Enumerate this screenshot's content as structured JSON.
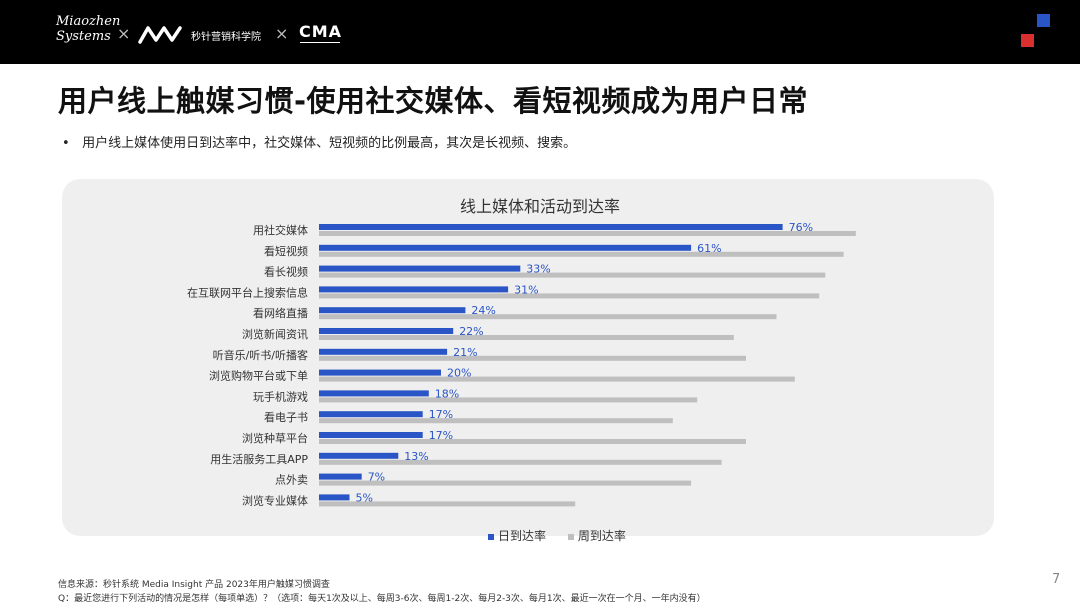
{
  "header": {
    "brand1": "Miaozhen Systems",
    "brand1_line1": "Miaozhen",
    "brand1_line2": "Systems",
    "separator": "×",
    "brand2_cn": "秒针营销科学院",
    "brand3": "CMA",
    "accent_blue": "#2a55c7",
    "accent_red": "#d92f2f"
  },
  "slide": {
    "title": "用户线上触媒习惯-使用社交媒体、看短视频成为用户日常",
    "bullet_marker": "•",
    "bullet": "用户线上媒体使用日到达率中，社交媒体、短视频的比例最高，其次是长视频、搜索。",
    "source": "信息来源：秒针系统 Media Insight 产品  2023年用户触媒习惯调查",
    "note": "Q：最近您进行下列活动的情况是怎样（每项单选）？（选项：每天1次及以上、每周3-6次、每周1-2次、每月2-3次、每月1次、最近一次在一个月、一年内没有）",
    "page_number": "7"
  },
  "chart_data": {
    "type": "bar",
    "orientation": "horizontal",
    "title": "线上媒体和活动到达率",
    "categories": [
      "用社交媒体",
      "看短视频",
      "看长视频",
      "在互联网平台上搜索信息",
      "看网络直播",
      "浏览新闻资讯",
      "听音乐/听书/听播客",
      "浏览购物平台或下单",
      "玩手机游戏",
      "看电子书",
      "浏览种草平台",
      "用生活服务工具APP",
      "点外卖",
      "浏览专业媒体"
    ],
    "series": [
      {
        "name": "日到达率",
        "color": "#2a55c7",
        "values": [
          76,
          61,
          33,
          31,
          24,
          22,
          21,
          20,
          18,
          17,
          17,
          13,
          7,
          5
        ],
        "labels": [
          "76%",
          "61%",
          "33%",
          "31%",
          "24%",
          "22%",
          "21%",
          "20%",
          "18%",
          "17%",
          "17%",
          "13%",
          "7%",
          "5%"
        ]
      },
      {
        "name": "周到达率",
        "color": "#bfbfbf",
        "values": [
          88,
          86,
          83,
          82,
          75,
          68,
          70,
          78,
          62,
          58,
          70,
          66,
          61,
          42
        ]
      }
    ],
    "xlim": [
      0,
      100
    ],
    "legend": "bottom-center",
    "grid": false
  }
}
